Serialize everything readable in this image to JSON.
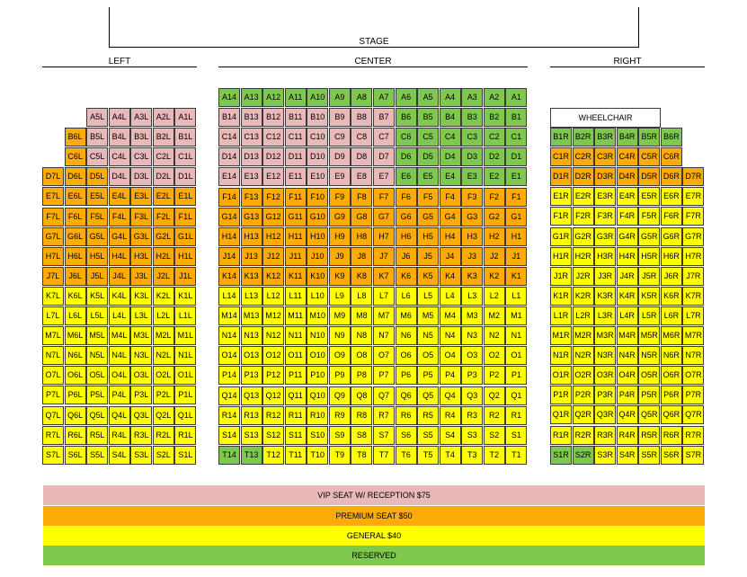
{
  "stage": {
    "label": "STAGE"
  },
  "sections": {
    "left": "LEFT",
    "center": "CENTER",
    "right": "RIGHT"
  },
  "wheelchair_label": "WHEELCHAIR",
  "legend": {
    "vip": "VIP SEAT W/ RECEPTION $75",
    "premium": "PREMIUM SEAT $50",
    "general": "GENERAL $40",
    "reserved": "RESERVED"
  },
  "colors": {
    "vip": "#e9b8b8",
    "premium": "#fcab08",
    "general": "#ffff00",
    "reserved": "#7fc84e"
  },
  "category_codes": {
    "V": "vip",
    "P": "premium",
    "G": "general",
    "R": "reserved"
  },
  "left": {
    "seat_labels": [
      "7L",
      "6L",
      "5L",
      "4L",
      "3L",
      "2L",
      "1L"
    ],
    "rows": [
      {
        "letter": "A",
        "seats": "--VVVVV"
      },
      {
        "letter": "B",
        "seats": "-PVVVVV"
      },
      {
        "letter": "C",
        "seats": "-PVVVVV"
      },
      {
        "letter": "D",
        "seats": "PPPVVVV"
      },
      {
        "letter": "E",
        "seats": "PPPPPPP"
      },
      {
        "letter": "F",
        "seats": "PPPPPPP"
      },
      {
        "letter": "G",
        "seats": "PPPPPPP"
      },
      {
        "letter": "H",
        "seats": "PPPPPPP"
      },
      {
        "letter": "J",
        "seats": "PPPPPPP"
      },
      {
        "letter": "K",
        "seats": "GGGGGGG"
      },
      {
        "letter": "L",
        "seats": "GGGGGGG"
      },
      {
        "letter": "M",
        "seats": "GGGGGGG"
      },
      {
        "letter": "N",
        "seats": "GGGGGGG"
      },
      {
        "letter": "O",
        "seats": "GGGGGGG"
      },
      {
        "letter": "P",
        "seats": "GGGGGGG"
      },
      {
        "letter": "Q",
        "seats": "GGGGGGG"
      },
      {
        "letter": "R",
        "seats": "GGGGGGG"
      },
      {
        "letter": "S",
        "seats": "GGGGGGG"
      }
    ]
  },
  "center": {
    "seat_labels": [
      "14",
      "13",
      "12",
      "11",
      "10",
      "9",
      "8",
      "7",
      "6",
      "5",
      "4",
      "3",
      "2",
      "1"
    ],
    "rows": [
      {
        "letter": "A",
        "seats": "RRRRRRRRRRRRRR"
      },
      {
        "letter": "B",
        "seats": "VVVVVVVVRRRRRR"
      },
      {
        "letter": "C",
        "seats": "VVVVVVVVRRRRRR"
      },
      {
        "letter": "D",
        "seats": "VVVVVVVVRRRRRR"
      },
      {
        "letter": "E",
        "seats": "VVVVVVVVRRRRRR"
      },
      {
        "letter": "F",
        "seats": "PPPPPPPPPPPPPP"
      },
      {
        "letter": "G",
        "seats": "PPPPPPPPPPPPPP"
      },
      {
        "letter": "H",
        "seats": "PPPPPPPPPPPPPP"
      },
      {
        "letter": "J",
        "seats": "PPPPPPPPPPPPPP"
      },
      {
        "letter": "K",
        "seats": "PPPPPPPPPPPPPP"
      },
      {
        "letter": "L",
        "seats": "GGGGGGGGGGGGGG"
      },
      {
        "letter": "M",
        "seats": "GGGGGGGGGGGGGG"
      },
      {
        "letter": "N",
        "seats": "GGGGGGGGGGGGGG"
      },
      {
        "letter": "O",
        "seats": "GGGGGGGGGGGGGG"
      },
      {
        "letter": "P",
        "seats": "GGGGGGGGGGGGGG"
      },
      {
        "letter": "Q",
        "seats": "GGGGGGGGGGGGGG"
      },
      {
        "letter": "R",
        "seats": "GGGGGGGGGGGGGG"
      },
      {
        "letter": "S",
        "seats": "GGGGGGGGGGGGGG"
      },
      {
        "letter": "T",
        "seats": "RRGGGGGGGGGGGG"
      }
    ]
  },
  "right": {
    "seat_labels": [
      "1R",
      "2R",
      "3R",
      "4R",
      "5R",
      "6R",
      "7R"
    ],
    "rows": [
      {
        "letter": "B",
        "seats": "RRRRRR-"
      },
      {
        "letter": "C",
        "seats": "PPPPPP-"
      },
      {
        "letter": "D",
        "seats": "PPPPPPP"
      },
      {
        "letter": "E",
        "seats": "GGGGGGG"
      },
      {
        "letter": "F",
        "seats": "GGGGGGG"
      },
      {
        "letter": "G",
        "seats": "GGGGGGG"
      },
      {
        "letter": "H",
        "seats": "GGGGGGG"
      },
      {
        "letter": "J",
        "seats": "GGGGGGG"
      },
      {
        "letter": "K",
        "seats": "GGGGGGG"
      },
      {
        "letter": "L",
        "seats": "GGGGGGG"
      },
      {
        "letter": "M",
        "seats": "GGGGGGG"
      },
      {
        "letter": "N",
        "seats": "GGGGGGG"
      },
      {
        "letter": "O",
        "seats": "GGGGGGG"
      },
      {
        "letter": "P",
        "seats": "GGGGGGG"
      },
      {
        "letter": "Q",
        "seats": "GGGGGGG"
      },
      {
        "letter": "R",
        "seats": "GGGGGGG"
      },
      {
        "letter": "S",
        "seats": "RRGGGGG"
      }
    ]
  }
}
